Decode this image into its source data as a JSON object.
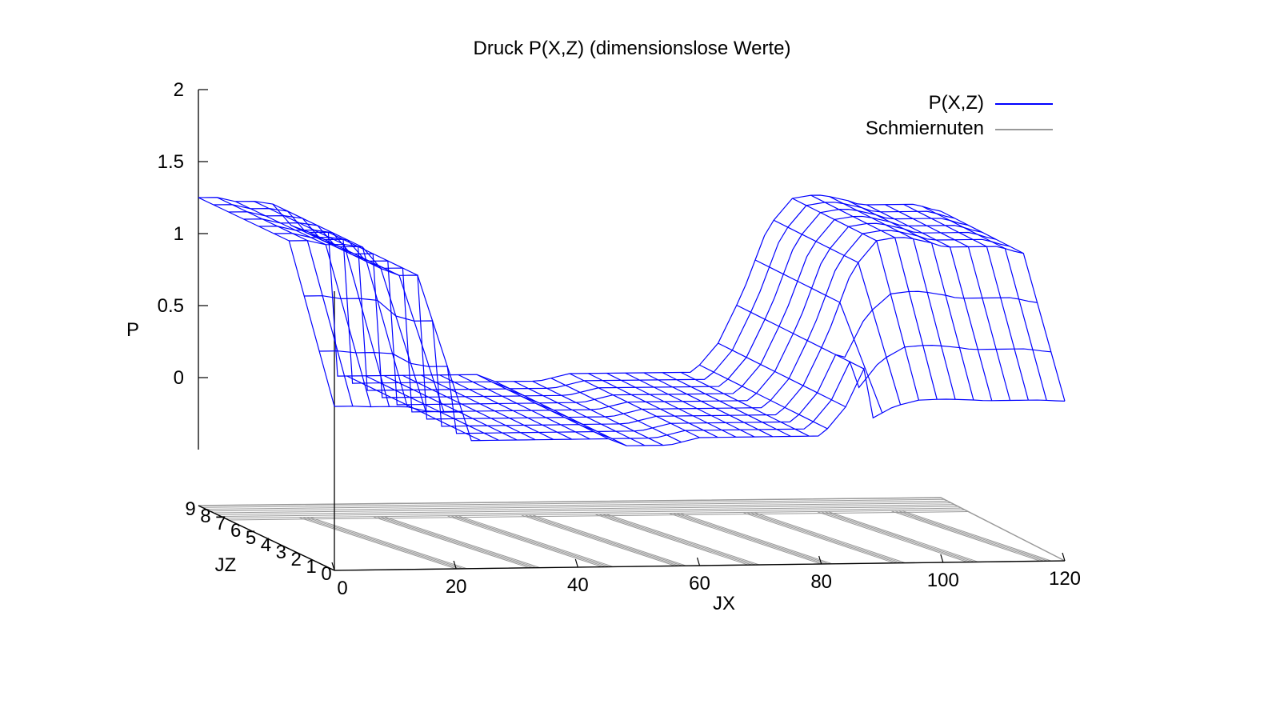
{
  "chart_data": {
    "type": "surface",
    "title": "Druck P(X,Z) (dimensionslose Werte)",
    "xlabel": "JX",
    "ylabel": "JZ",
    "zlabel": "P",
    "xlim": [
      0,
      120
    ],
    "ylim": [
      0,
      9
    ],
    "zlim": [
      -0.5,
      2
    ],
    "x_ticks": [
      "0",
      "20",
      "40",
      "60",
      "80",
      "100",
      "120"
    ],
    "y_ticks": [
      "0",
      "1",
      "2",
      "3",
      "4",
      "5",
      "6",
      "7",
      "8",
      "9"
    ],
    "z_ticks": [
      "0",
      "0.5",
      "1",
      "1.5",
      "2"
    ],
    "legend_position": "top-right",
    "series": [
      {
        "name": "P(X,Z)",
        "color": "#0000ff",
        "kind": "surface",
        "jx": [
          0,
          3,
          6,
          9,
          12,
          15,
          18,
          21,
          22,
          27,
          30,
          35,
          40,
          45,
          48,
          55,
          60,
          63,
          66,
          70,
          73,
          76,
          78,
          80,
          84,
          88,
          92,
          96,
          99,
          101,
          103,
          105,
          107,
          110,
          113,
          116,
          118,
          120
        ],
        "jz": [
          0,
          1,
          2,
          3,
          4,
          5,
          6,
          7,
          8,
          9
        ],
        "profile_P_at_JZ_mid": [
          1.25,
          1.25,
          1.22,
          1.22,
          1.2,
          1.05,
          1.0,
          1.0,
          0.0,
          0.0,
          0.0,
          0.0,
          0.0,
          0.0,
          -0.05,
          -0.05,
          0.0,
          0.0,
          0.0,
          0.0,
          0.0,
          0.0,
          0.0,
          0.0,
          0.2,
          0.55,
          1.0,
          1.2,
          1.22,
          1.22,
          1.2,
          1.18,
          1.15,
          1.15,
          1.15,
          1.15,
          1.12,
          1.1
        ]
      },
      {
        "name": "Schmiernuten",
        "color": "#999999",
        "kind": "grooves",
        "grooves_jx": [
          12,
          24,
          36,
          48,
          60,
          72,
          84,
          96,
          108
        ]
      }
    ]
  }
}
